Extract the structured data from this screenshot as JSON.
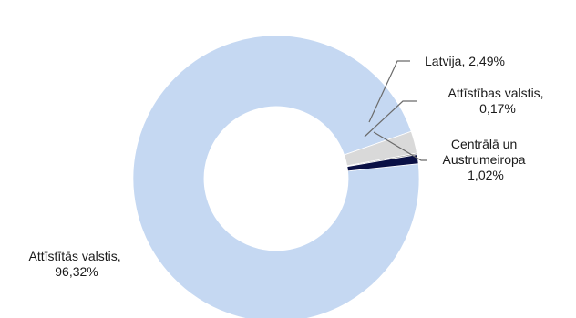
{
  "chart_data": {
    "type": "pie",
    "variant": "donut",
    "slices": [
      {
        "label_lines": [
          "Attīstītās valstis,",
          "96,32%"
        ],
        "value": 96.32,
        "color": "#c5d8f2"
      },
      {
        "label_lines": [
          "Latvija, 2,49%"
        ],
        "value": 2.49,
        "color": "#d9d9d9"
      },
      {
        "label_lines": [
          "Attīstības valstis,",
          "0,17%"
        ],
        "value": 0.17,
        "color": "#8c8c8c"
      },
      {
        "label_lines": [
          "Centrālā un",
          "Austrumeiropa",
          "1,02%"
        ],
        "value": 1.02,
        "color": "#0a1045"
      }
    ],
    "legend": "none"
  }
}
